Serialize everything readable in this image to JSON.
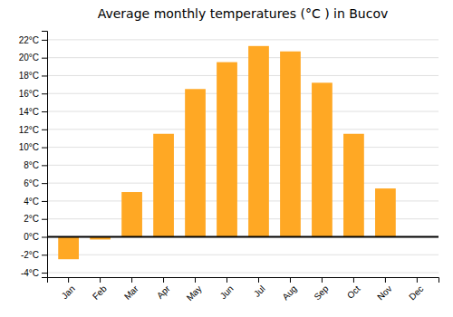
{
  "chart_data": {
    "type": "bar",
    "title": "Average monthly temperatures (°C ) in Bucov",
    "categories": [
      "Jan",
      "Feb",
      "Mar",
      "Apr",
      "May",
      "Jun",
      "Jul",
      "Aug",
      "Sep",
      "Oct",
      "Nov",
      "Dec"
    ],
    "values": [
      -2.5,
      -0.3,
      5.0,
      11.5,
      16.5,
      19.5,
      21.3,
      20.7,
      17.2,
      11.5,
      5.4,
      0.0
    ],
    "color": "#FFA824",
    "ylim": [
      -4.5,
      23
    ],
    "yticks": [
      {
        "value": -4,
        "label": "-4°C"
      },
      {
        "value": -2,
        "label": "-2°C"
      },
      {
        "value": 0,
        "label": "0°C"
      },
      {
        "value": 2,
        "label": "2°C"
      },
      {
        "value": 4,
        "label": "4°C"
      },
      {
        "value": 6,
        "label": "6°C"
      },
      {
        "value": 8,
        "label": "8°C"
      },
      {
        "value": 10,
        "label": "10°C"
      },
      {
        "value": 12,
        "label": "12°C"
      },
      {
        "value": 14,
        "label": "14°C"
      },
      {
        "value": 16,
        "label": "16°C"
      },
      {
        "value": 18,
        "label": "18°C"
      },
      {
        "value": 20,
        "label": "20°C"
      },
      {
        "value": 22,
        "label": "22°C"
      }
    ],
    "grid": true
  }
}
